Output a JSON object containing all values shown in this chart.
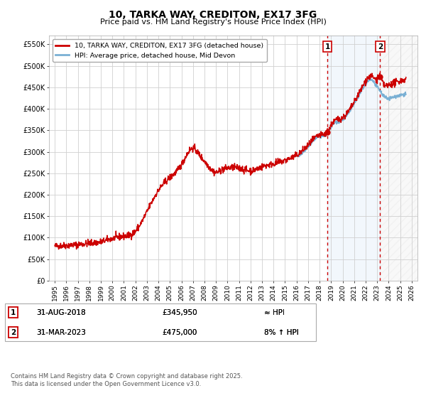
{
  "title": "10, TARKA WAY, CREDITON, EX17 3FG",
  "subtitle": "Price paid vs. HM Land Registry's House Price Index (HPI)",
  "xlim": [
    1994.5,
    2026.5
  ],
  "ylim": [
    0,
    570000
  ],
  "yticks": [
    0,
    50000,
    100000,
    150000,
    200000,
    250000,
    300000,
    350000,
    400000,
    450000,
    500000,
    550000
  ],
  "ytick_labels": [
    "£0",
    "£50K",
    "£100K",
    "£150K",
    "£200K",
    "£250K",
    "£300K",
    "£350K",
    "£400K",
    "£450K",
    "£500K",
    "£550K"
  ],
  "xticks": [
    1995,
    1996,
    1997,
    1998,
    1999,
    2000,
    2001,
    2002,
    2003,
    2004,
    2005,
    2006,
    2007,
    2008,
    2009,
    2010,
    2011,
    2012,
    2013,
    2014,
    2015,
    2016,
    2017,
    2018,
    2019,
    2020,
    2021,
    2022,
    2023,
    2024,
    2025,
    2026
  ],
  "plot_bg": "#ffffff",
  "fig_bg": "#ffffff",
  "grid_color": "#d0d0d0",
  "line_color_red": "#cc0000",
  "line_color_blue": "#7ab0d4",
  "marker1_date": 2018.67,
  "marker1_value": 345950,
  "marker2_date": 2023.25,
  "marker2_value": 475000,
  "shaded_start": 2018.67,
  "shaded_end": 2023.25,
  "hatch_start": 2023.25,
  "hatch_end": 2026.5,
  "legend_line1": "10, TARKA WAY, CREDITON, EX17 3FG (detached house)",
  "legend_line2": "HPI: Average price, detached house, Mid Devon",
  "table_row1_num": "1",
  "table_row1_date": "31-AUG-2018",
  "table_row1_price": "£345,950",
  "table_row1_hpi": "≈ HPI",
  "table_row2_num": "2",
  "table_row2_date": "31-MAR-2023",
  "table_row2_price": "£475,000",
  "table_row2_hpi": "8% ↑ HPI",
  "footer": "Contains HM Land Registry data © Crown copyright and database right 2025.\nThis data is licensed under the Open Government Licence v3.0."
}
